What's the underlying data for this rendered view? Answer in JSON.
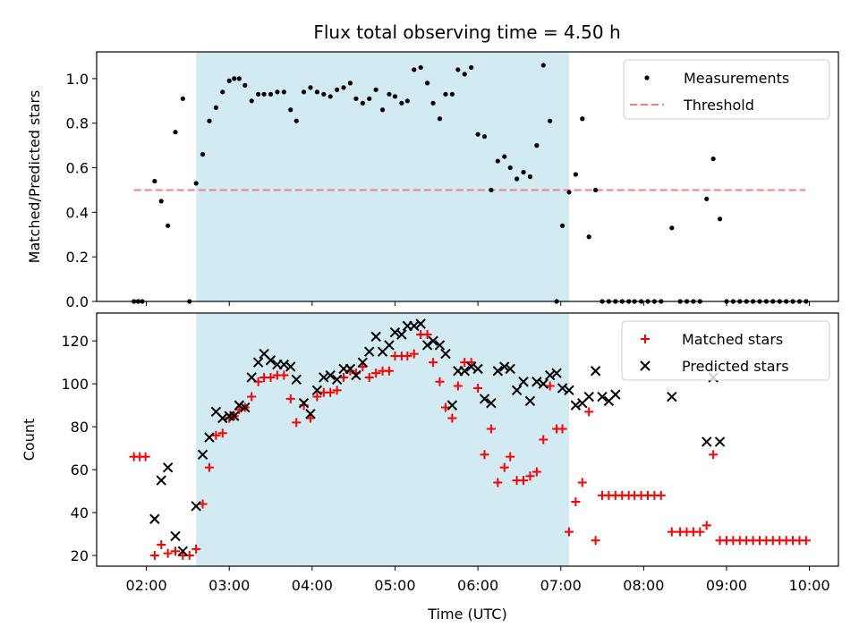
{
  "title": "Flux total observing time = 4.50 h",
  "colors": {
    "shade": "#add8e6",
    "threshold": "#f08080",
    "matched": "#ff0000",
    "predicted": "#000000",
    "measurements": "#000000"
  },
  "x_ticks": [
    "02:00",
    "03:00",
    "04:00",
    "05:00",
    "06:00",
    "07:00",
    "08:00",
    "09:00",
    "10:00"
  ],
  "x_tick_hours": [
    2,
    3,
    4,
    5,
    6,
    7,
    8,
    9,
    10
  ],
  "chart_data": [
    {
      "type": "scatter",
      "panel": "top",
      "ylabel": "Matched/Predicted stars",
      "xlim": [
        1.4,
        10.35
      ],
      "ylim": [
        0,
        1.12
      ],
      "y_ticks": [
        "0.0",
        "0.2",
        "0.4",
        "0.6",
        "0.8",
        "1.0"
      ],
      "y_tick_values": [
        0,
        0.2,
        0.4,
        0.6,
        0.8,
        1.0
      ],
      "shaded_x": [
        2.6,
        7.1
      ],
      "legend": {
        "position": "upper right",
        "entries": [
          "Measurements",
          "Threshold"
        ]
      },
      "threshold": {
        "name": "Threshold",
        "y": 0.5,
        "x": [
          1.85,
          9.95
        ]
      },
      "series": [
        {
          "name": "Measurements",
          "marker": "dot",
          "x": [
            1.85,
            1.9,
            1.95,
            2.1,
            2.18,
            2.26,
            2.35,
            2.44,
            2.52,
            2.6,
            2.68,
            2.76,
            2.84,
            2.92,
            3.0,
            3.06,
            3.12,
            3.19,
            3.27,
            3.35,
            3.42,
            3.5,
            3.58,
            3.66,
            3.74,
            3.81,
            3.9,
            3.98,
            4.06,
            4.14,
            4.22,
            4.3,
            4.38,
            4.46,
            4.53,
            4.61,
            4.69,
            4.77,
            4.85,
            4.93,
            5.0,
            5.08,
            5.15,
            5.23,
            5.31,
            5.39,
            5.46,
            5.54,
            5.61,
            5.69,
            5.76,
            5.84,
            5.92,
            6.0,
            6.08,
            6.16,
            6.24,
            6.32,
            6.39,
            6.47,
            6.55,
            6.63,
            6.71,
            6.79,
            6.87,
            6.95,
            7.02,
            7.1,
            7.18,
            7.26,
            7.34,
            7.42,
            7.5,
            7.58,
            7.66,
            7.74,
            7.82,
            7.89,
            7.97,
            8.05,
            8.13,
            8.21,
            8.34,
            8.44,
            8.52,
            8.6,
            8.68,
            8.76,
            8.84,
            8.92,
            9.0,
            9.08,
            9.16,
            9.24,
            9.32,
            9.4,
            9.48,
            9.56,
            9.64,
            9.72,
            9.8,
            9.88,
            9.96
          ],
          "y": [
            0.0,
            0.0,
            0.0,
            0.54,
            0.45,
            0.34,
            0.76,
            0.91,
            0.0,
            0.53,
            0.66,
            0.81,
            0.87,
            0.94,
            0.99,
            1.0,
            1.0,
            0.97,
            0.9,
            0.93,
            0.93,
            0.93,
            0.94,
            0.94,
            0.86,
            0.81,
            0.94,
            0.96,
            0.94,
            0.93,
            0.92,
            0.95,
            0.96,
            0.98,
            0.91,
            0.89,
            0.91,
            0.95,
            0.86,
            0.93,
            0.92,
            0.89,
            0.9,
            1.04,
            1.05,
            0.98,
            0.89,
            0.82,
            0.93,
            0.93,
            1.04,
            1.02,
            1.05,
            0.75,
            0.74,
            0.5,
            0.63,
            0.65,
            0.6,
            0.55,
            0.58,
            0.56,
            0.7,
            1.06,
            0.81,
            0.0,
            0.34,
            0.49,
            0.57,
            0.82,
            0.29,
            0.5,
            0.0,
            0.0,
            0.0,
            0.0,
            0.0,
            0.0,
            0.0,
            0.0,
            0.0,
            0.0,
            0.33,
            0.0,
            0.0,
            0.0,
            0.0,
            0.46,
            0.64,
            0.37,
            0.0,
            0.0,
            0.0,
            0.0,
            0.0,
            0.0,
            0.0,
            0.0,
            0.0,
            0.0,
            0.0,
            0.0,
            0.0
          ]
        }
      ]
    },
    {
      "type": "scatter",
      "panel": "bottom",
      "ylabel": "Count",
      "xlabel": "Time (UTC)",
      "xlim": [
        1.4,
        10.35
      ],
      "ylim": [
        15,
        133
      ],
      "y_ticks": [
        "20",
        "40",
        "60",
        "80",
        "100",
        "120"
      ],
      "y_tick_values": [
        20,
        40,
        60,
        80,
        100,
        120
      ],
      "shaded_x": [
        2.6,
        7.1
      ],
      "legend": {
        "position": "upper right",
        "entries": [
          "Matched stars",
          "Predicted stars"
        ]
      },
      "series": [
        {
          "name": "Matched stars",
          "marker": "plus",
          "x": [
            1.85,
            1.92,
            1.99,
            2.1,
            2.18,
            2.26,
            2.35,
            2.44,
            2.52,
            2.6,
            2.68,
            2.76,
            2.84,
            2.92,
            3.0,
            3.06,
            3.12,
            3.19,
            3.27,
            3.35,
            3.42,
            3.5,
            3.58,
            3.66,
            3.74,
            3.81,
            3.9,
            3.98,
            4.06,
            4.14,
            4.22,
            4.3,
            4.38,
            4.46,
            4.53,
            4.61,
            4.69,
            4.77,
            4.85,
            4.93,
            5.0,
            5.08,
            5.15,
            5.23,
            5.31,
            5.39,
            5.46,
            5.54,
            5.61,
            5.69,
            5.76,
            5.84,
            5.92,
            6.0,
            6.08,
            6.16,
            6.24,
            6.32,
            6.39,
            6.47,
            6.55,
            6.63,
            6.71,
            6.79,
            6.87,
            6.95,
            7.02,
            7.1,
            7.18,
            7.26,
            7.34,
            7.42,
            7.5,
            7.58,
            7.66,
            7.74,
            7.82,
            7.89,
            7.97,
            8.05,
            8.13,
            8.21,
            8.34,
            8.44,
            8.52,
            8.6,
            8.68,
            8.76,
            8.84,
            8.92,
            9.0,
            9.08,
            9.16,
            9.24,
            9.32,
            9.4,
            9.48,
            9.56,
            9.64,
            9.72,
            9.8,
            9.88,
            9.96
          ],
          "y": [
            66,
            66,
            66,
            20,
            25,
            21,
            22,
            20,
            20,
            23,
            44,
            61,
            76,
            77,
            84,
            85,
            88,
            89,
            94,
            101,
            103,
            103,
            104,
            104,
            93,
            82,
            90,
            84,
            94,
            96,
            96,
            97,
            103,
            106,
            105,
            108,
            103,
            105,
            106,
            106,
            113,
            113,
            113,
            114,
            123,
            123,
            110,
            101,
            89,
            84,
            99,
            110,
            110,
            98,
            67,
            79,
            54,
            61,
            66,
            55,
            55,
            57,
            59,
            74,
            99,
            79,
            79,
            31,
            45,
            54,
            87,
            27,
            48,
            48,
            48,
            48,
            48,
            48,
            48,
            48,
            48,
            48,
            31,
            31,
            31,
            31,
            31,
            34,
            67,
            27,
            27,
            27,
            27,
            27,
            27,
            27,
            27,
            27,
            27,
            27,
            27,
            27,
            27
          ]
        },
        {
          "name": "Predicted stars",
          "marker": "x",
          "x": [
            2.1,
            2.18,
            2.26,
            2.35,
            2.44,
            2.6,
            2.68,
            2.76,
            2.84,
            2.92,
            3.0,
            3.06,
            3.12,
            3.19,
            3.27,
            3.35,
            3.42,
            3.5,
            3.58,
            3.66,
            3.74,
            3.81,
            3.9,
            3.98,
            4.06,
            4.14,
            4.22,
            4.3,
            4.38,
            4.46,
            4.53,
            4.61,
            4.69,
            4.77,
            4.85,
            4.93,
            5.0,
            5.08,
            5.15,
            5.23,
            5.31,
            5.39,
            5.46,
            5.54,
            5.61,
            5.69,
            5.76,
            5.84,
            5.92,
            6.0,
            6.08,
            6.16,
            6.24,
            6.32,
            6.39,
            6.47,
            6.55,
            6.63,
            6.71,
            6.79,
            6.87,
            6.95,
            7.02,
            7.1,
            7.18,
            7.26,
            7.34,
            7.42,
            7.5,
            7.58,
            7.66,
            8.34,
            8.76,
            8.84,
            8.92
          ],
          "y": [
            37,
            55,
            61,
            29,
            22,
            43,
            67,
            75,
            87,
            84,
            85,
            85,
            90,
            89,
            103,
            110,
            114,
            111,
            109,
            109,
            108,
            102,
            91,
            86,
            97,
            103,
            104,
            102,
            107,
            107,
            104,
            110,
            115,
            122,
            115,
            118,
            124,
            123,
            127,
            127,
            128,
            118,
            120,
            118,
            114,
            90,
            106,
            106,
            108,
            107,
            93,
            91,
            106,
            108,
            107,
            97,
            101,
            92,
            101,
            100,
            104,
            105,
            98,
            97,
            90,
            91,
            94,
            106,
            94,
            92,
            95,
            94,
            73,
            103,
            73
          ]
        }
      ]
    }
  ]
}
